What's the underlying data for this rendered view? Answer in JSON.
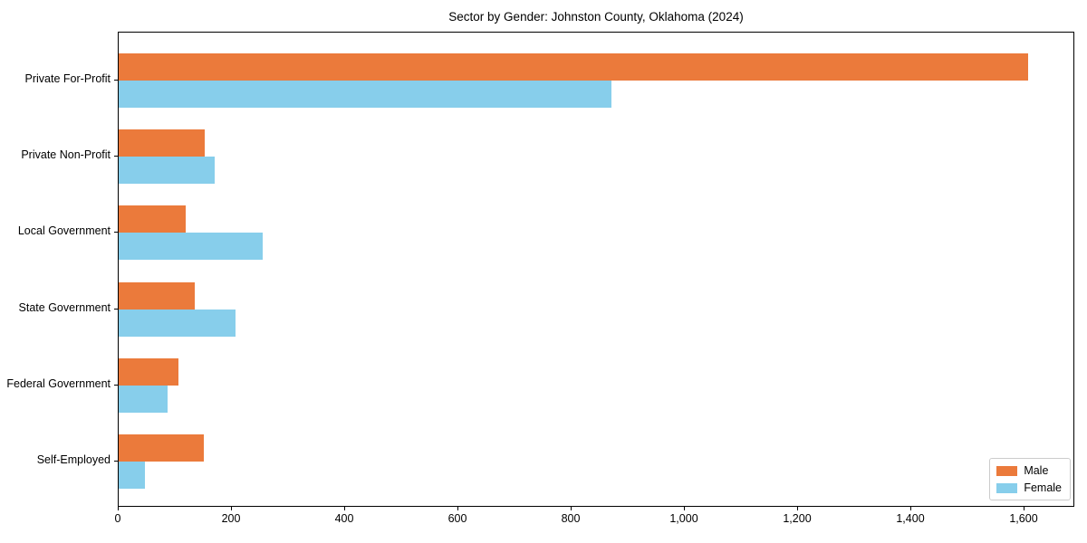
{
  "chart_data": {
    "type": "bar",
    "orientation": "horizontal",
    "title": "Sector by Gender: Johnston County, Oklahoma (2024)",
    "categories": [
      "Private For-Profit",
      "Private Non-Profit",
      "Local Government",
      "State Government",
      "Federal Government",
      "Self-Employed"
    ],
    "series": [
      {
        "name": "Male",
        "color": "#EB7A3B",
        "values": [
          1607,
          152,
          118,
          134,
          106,
          150
        ]
      },
      {
        "name": "Female",
        "color": "#87CEEB",
        "values": [
          870,
          170,
          255,
          207,
          86,
          46
        ]
      }
    ],
    "xlabel": "",
    "ylabel": "",
    "xlim": [
      0,
      1690
    ],
    "xticks": [
      0,
      200,
      400,
      600,
      800,
      1000,
      1200,
      1400,
      1600
    ],
    "xtick_labels": [
      "0",
      "200",
      "400",
      "600",
      "800",
      "1,000",
      "1,200",
      "1,400",
      "1,600"
    ],
    "grid": false,
    "legend_position": "lower right",
    "plot_background": "#ffffff",
    "axis_color": "#000000"
  }
}
